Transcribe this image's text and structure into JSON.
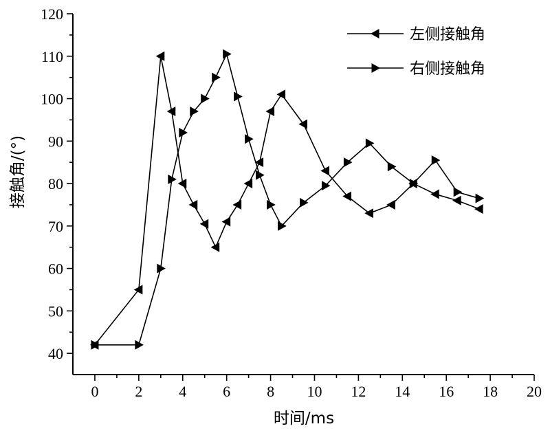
{
  "chart_data": {
    "type": "line",
    "xlabel": "时间/ms",
    "ylabel": "接触角/(°)",
    "xlim": [
      -1,
      20
    ],
    "ylim": [
      35,
      120
    ],
    "xticks": [
      0,
      2,
      4,
      6,
      8,
      10,
      12,
      14,
      16,
      18,
      20
    ],
    "yticks": [
      40,
      50,
      60,
      70,
      80,
      90,
      100,
      110,
      120
    ],
    "legend_position": "top-right",
    "grid": false,
    "series": [
      {
        "name": "左侧接触角",
        "marker": "left-triangle",
        "x": [
          0,
          2,
          3,
          3.5,
          4,
          4.5,
          5,
          5.5,
          6,
          6.5,
          7,
          7.5,
          8,
          8.5,
          9.5,
          10.5,
          11.5,
          12.5,
          13.5,
          14.5,
          15.5,
          16.5,
          17.5
        ],
        "y": [
          42,
          55,
          110,
          97,
          80,
          75,
          70.5,
          65,
          71,
          75,
          80,
          85,
          97,
          101,
          94,
          83,
          77,
          73,
          75,
          80,
          77.5,
          76,
          74
        ]
      },
      {
        "name": "右侧接触角",
        "marker": "right-triangle",
        "x": [
          0,
          2,
          3,
          3.5,
          4,
          4.5,
          5,
          5.5,
          6,
          6.5,
          7,
          7.5,
          8,
          8.5,
          9.5,
          10.5,
          11.5,
          12.5,
          13.5,
          14.5,
          15.5,
          16.5,
          17.5
        ],
        "y": [
          42,
          42,
          60,
          81,
          92,
          97,
          100,
          105,
          110.5,
          100.5,
          90.5,
          82,
          75,
          70,
          75.5,
          79.5,
          85,
          89.5,
          84,
          80,
          85.5,
          78,
          76.5
        ]
      }
    ]
  }
}
